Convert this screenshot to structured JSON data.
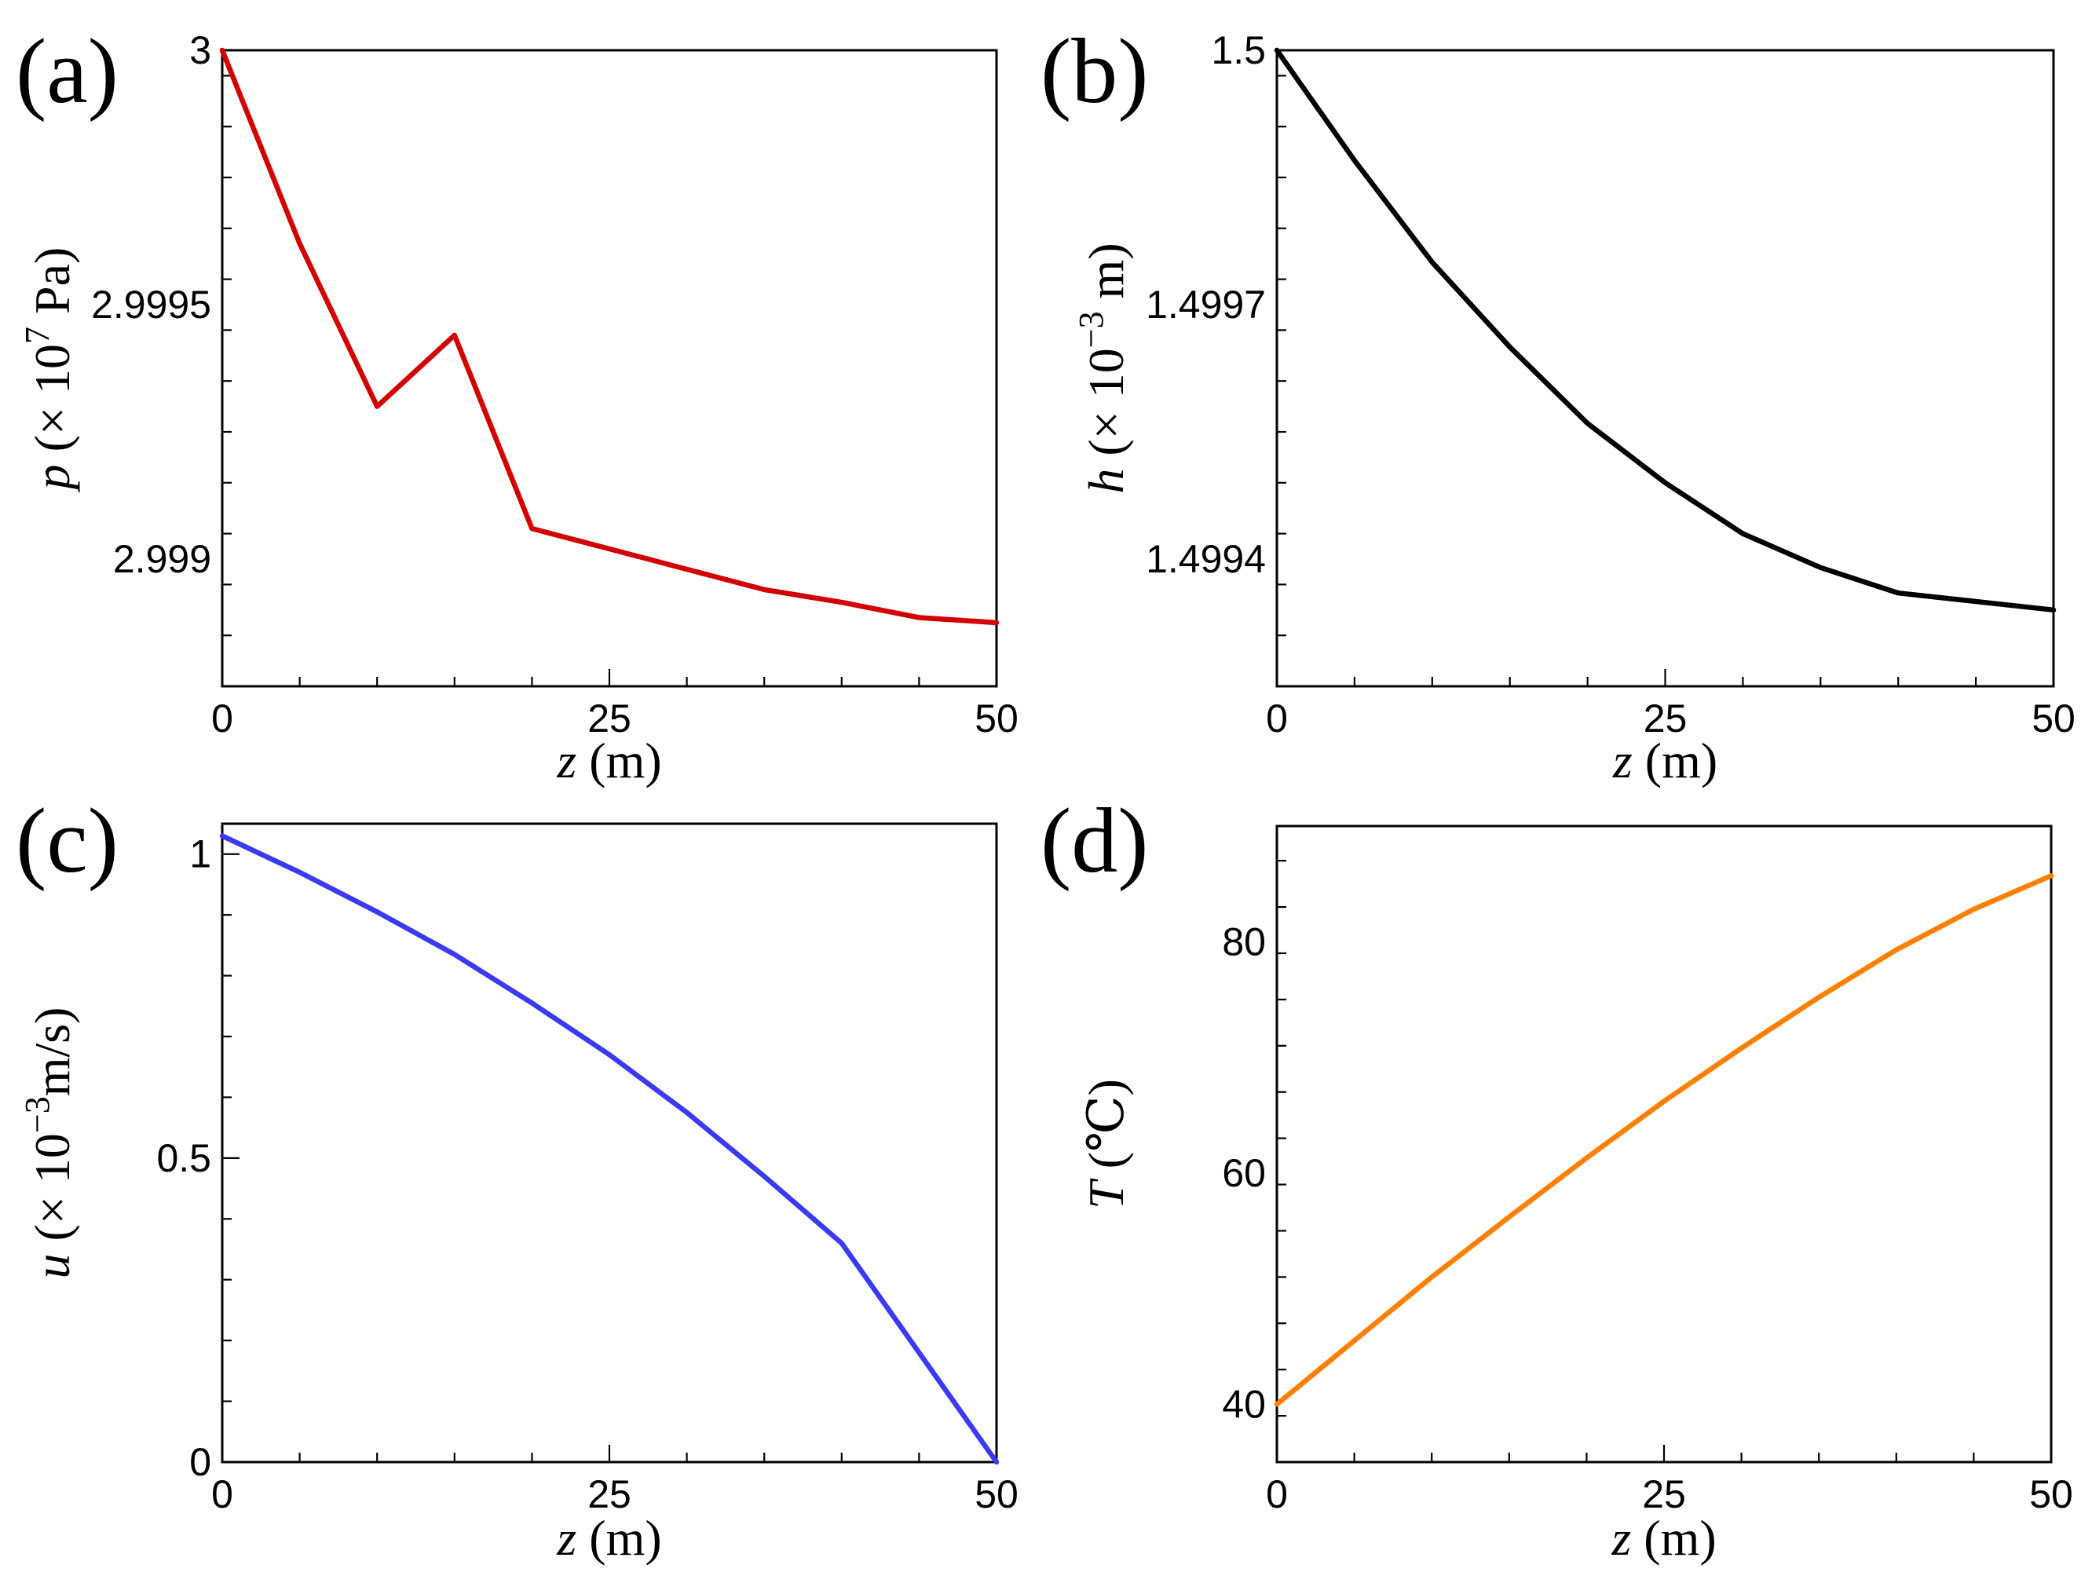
{
  "chart_data": [
    {
      "panel": "(a)",
      "type": "line",
      "title": "",
      "xlabel_var": "z",
      "xlabel_unit": " (m)",
      "ylabel_var": "p",
      "ylabel_unit_pre": " (× 10",
      "ylabel_exp": "7",
      "ylabel_unit_post": " Pa)",
      "xlim": [
        0,
        50
      ],
      "ylim": [
        29.9875,
        30.0
      ],
      "xticks": [
        0,
        25,
        50
      ],
      "xtick_labels": [
        "0",
        "25",
        "50"
      ],
      "yticks": [
        30.0,
        29.995,
        29.99
      ],
      "ytick_labels": [
        "3",
        "2.9995",
        "2.999"
      ],
      "x": [
        0,
        5,
        10,
        15,
        20,
        25,
        30,
        35,
        40,
        45,
        50
      ],
      "y": [
        30.0,
        29.9962,
        29.993,
        29.9944,
        29.9906,
        29.9902,
        29.9898,
        29.9894,
        29.98915,
        29.98885,
        29.98875
      ],
      "series": [
        {
          "name": "p",
          "color": "#d40000"
        }
      ]
    },
    {
      "panel": "(b)",
      "type": "line",
      "title": "",
      "xlabel_var": "z",
      "xlabel_unit": " (m)",
      "ylabel_var": "h",
      "ylabel_unit_pre": " (× 10",
      "ylabel_exp": "−3",
      "ylabel_unit_post": " m)",
      "xlim": [
        0,
        50
      ],
      "ylim": [
        1.49925,
        1.5
      ],
      "xticks": [
        0,
        25,
        50
      ],
      "xtick_labels": [
        "0",
        "25",
        "50"
      ],
      "yticks": [
        1.5,
        1.4997,
        1.4994
      ],
      "ytick_labels": [
        "1.5",
        "1.4997",
        "1.4994"
      ],
      "x": [
        0,
        5,
        10,
        15,
        20,
        25,
        30,
        35,
        40,
        45,
        50
      ],
      "y": [
        1.5,
        1.49987,
        1.49975,
        1.49965,
        1.49956,
        1.49949,
        1.49943,
        1.49939,
        1.49936,
        1.49935,
        1.49934
      ],
      "series": [
        {
          "name": "h",
          "color": "#000000"
        }
      ]
    },
    {
      "panel": "(c)",
      "type": "line",
      "title": "",
      "xlabel_var": "z",
      "xlabel_unit": " (m)",
      "ylabel_var": "u",
      "ylabel_unit_pre": " (× 10",
      "ylabel_exp": "−3",
      "ylabel_unit_post": "m/s)",
      "xlim": [
        0,
        50
      ],
      "ylim": [
        0,
        1.05
      ],
      "xticks": [
        0,
        25,
        50
      ],
      "xtick_labels": [
        "0",
        "25",
        "50"
      ],
      "yticks": [
        0,
        0.5,
        1
      ],
      "ytick_labels": [
        "0",
        "0.5",
        "1"
      ],
      "x": [
        0,
        5,
        10,
        15,
        20,
        25,
        30,
        35,
        40,
        45,
        50
      ],
      "y": [
        1.03,
        0.97,
        0.905,
        0.835,
        0.755,
        0.67,
        0.575,
        0.47,
        0.36,
        0.18,
        0.0
      ],
      "series": [
        {
          "name": "u",
          "color": "#3a3af5"
        }
      ]
    },
    {
      "panel": "(d)",
      "type": "line",
      "title": "",
      "xlabel_var": "z",
      "xlabel_unit": " (m)",
      "ylabel_var": "T",
      "ylabel_unit_pre": " (℃)",
      "ylabel_exp": "",
      "ylabel_unit_post": "",
      "xlim": [
        0,
        50
      ],
      "ylim": [
        35,
        90
      ],
      "xticks": [
        0,
        25,
        50
      ],
      "xtick_labels": [
        "0",
        "25",
        "50"
      ],
      "yticks": [
        40,
        60,
        80
      ],
      "ytick_labels": [
        "40",
        "60",
        "80"
      ],
      "x": [
        0,
        5,
        10,
        15,
        20,
        25,
        30,
        35,
        40,
        45,
        50
      ],
      "y": [
        40,
        45.5,
        51,
        56.2,
        61.3,
        66.2,
        70.8,
        75.2,
        79.3,
        82.8,
        85.7
      ],
      "series": [
        {
          "name": "T",
          "color": "#ff8000"
        }
      ]
    }
  ]
}
